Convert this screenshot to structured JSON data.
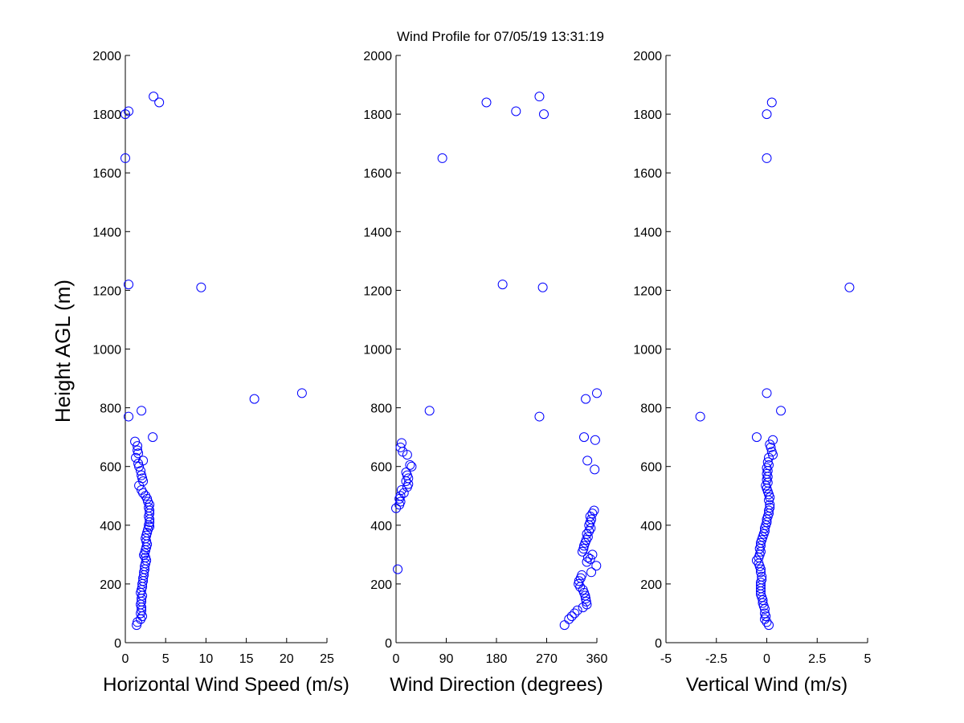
{
  "figure": {
    "title": "Wind Profile for  07/05/19 13:31:19",
    "ylabel": "Height AGL (m)"
  },
  "colors": {
    "marker": "#0000ff",
    "axis": "#000000",
    "background": "#ffffff"
  },
  "chart_data": [
    {
      "type": "scatter",
      "xlabel": "Horizontal Wind Speed (m/s)",
      "xlim": [
        0,
        25
      ],
      "ylim": [
        0,
        2000
      ],
      "xticks": [
        0,
        5,
        10,
        15,
        20,
        25
      ],
      "xticklabels": [
        "0",
        "5",
        "10",
        "15",
        "20",
        "25"
      ],
      "yticks": [
        0,
        200,
        400,
        600,
        800,
        1000,
        1200,
        1400,
        1600,
        1800,
        2000
      ],
      "yticklabels": [
        "0",
        "200",
        "400",
        "600",
        "800",
        "1000",
        "1200",
        "1400",
        "1600",
        "1800",
        "2000"
      ],
      "grid": false,
      "points": [
        [
          3.5,
          1860
        ],
        [
          4.2,
          1840
        ],
        [
          0.4,
          1810
        ],
        [
          0.0,
          1800
        ],
        [
          0.0,
          1650
        ],
        [
          0.4,
          1220
        ],
        [
          9.4,
          1210
        ],
        [
          21.9,
          850
        ],
        [
          16.0,
          830
        ],
        [
          2.0,
          790
        ],
        [
          0.4,
          770
        ],
        [
          3.4,
          700
        ],
        [
          1.2,
          685
        ],
        [
          1.5,
          670
        ],
        [
          1.5,
          655
        ],
        [
          1.6,
          645
        ],
        [
          1.3,
          630
        ],
        [
          2.2,
          620
        ],
        [
          1.6,
          610
        ],
        [
          1.7,
          600
        ],
        [
          1.9,
          585
        ],
        [
          2.0,
          570
        ],
        [
          2.1,
          560
        ],
        [
          2.2,
          550
        ],
        [
          1.7,
          535
        ],
        [
          2.0,
          520
        ],
        [
          2.2,
          510
        ],
        [
          2.5,
          500
        ],
        [
          2.7,
          490
        ],
        [
          2.8,
          480
        ],
        [
          3.0,
          470
        ],
        [
          2.9,
          460
        ],
        [
          3.0,
          450
        ],
        [
          3.0,
          440
        ],
        [
          2.9,
          430
        ],
        [
          3.0,
          420
        ],
        [
          3.0,
          410
        ],
        [
          2.9,
          400
        ],
        [
          3.0,
          395
        ],
        [
          2.8,
          385
        ],
        [
          2.7,
          375
        ],
        [
          2.6,
          365
        ],
        [
          2.5,
          355
        ],
        [
          2.6,
          345
        ],
        [
          2.7,
          335
        ],
        [
          2.6,
          325
        ],
        [
          2.5,
          315
        ],
        [
          2.4,
          305
        ],
        [
          2.3,
          298
        ],
        [
          2.5,
          290
        ],
        [
          2.6,
          280
        ],
        [
          2.5,
          270
        ],
        [
          2.4,
          260
        ],
        [
          2.4,
          250
        ],
        [
          2.3,
          240
        ],
        [
          2.3,
          230
        ],
        [
          2.2,
          220
        ],
        [
          2.2,
          210
        ],
        [
          2.1,
          200
        ],
        [
          2.1,
          190
        ],
        [
          2.0,
          180
        ],
        [
          1.9,
          170
        ],
        [
          2.1,
          160
        ],
        [
          2.0,
          150
        ],
        [
          2.0,
          140
        ],
        [
          1.9,
          130
        ],
        [
          2.0,
          120
        ],
        [
          2.0,
          110
        ],
        [
          1.9,
          100
        ],
        [
          2.1,
          90
        ],
        [
          1.9,
          80
        ],
        [
          1.5,
          70
        ],
        [
          1.4,
          60
        ]
      ]
    },
    {
      "type": "scatter",
      "xlabel": "Wind Direction (degrees)",
      "xlim": [
        0,
        360
      ],
      "ylim": [
        0,
        2000
      ],
      "xticks": [
        0,
        90,
        180,
        270,
        360
      ],
      "xticklabels": [
        "0",
        "90",
        "180",
        "270",
        "360"
      ],
      "yticks": [
        0,
        200,
        400,
        600,
        800,
        1000,
        1200,
        1400,
        1600,
        1800,
        2000
      ],
      "yticklabels": [
        "0",
        "200",
        "400",
        "600",
        "800",
        "1000",
        "1200",
        "1400",
        "1600",
        "1800",
        "2000"
      ],
      "grid": false,
      "points": [
        [
          257,
          1860
        ],
        [
          162,
          1840
        ],
        [
          215,
          1810
        ],
        [
          265,
          1800
        ],
        [
          83,
          1650
        ],
        [
          191,
          1220
        ],
        [
          263,
          1210
        ],
        [
          360,
          850
        ],
        [
          340,
          830
        ],
        [
          60,
          790
        ],
        [
          257,
          770
        ],
        [
          337,
          700
        ],
        [
          357,
          690
        ],
        [
          10,
          680
        ],
        [
          8,
          665
        ],
        [
          12,
          650
        ],
        [
          20,
          640
        ],
        [
          343,
          620
        ],
        [
          25,
          605
        ],
        [
          28,
          600
        ],
        [
          356,
          590
        ],
        [
          18,
          580
        ],
        [
          20,
          570
        ],
        [
          22,
          560
        ],
        [
          18,
          550
        ],
        [
          22,
          540
        ],
        [
          20,
          530
        ],
        [
          10,
          520
        ],
        [
          14,
          510
        ],
        [
          8,
          500
        ],
        [
          6,
          490
        ],
        [
          8,
          480
        ],
        [
          6,
          470
        ],
        [
          0,
          458
        ],
        [
          355,
          450
        ],
        [
          352,
          440
        ],
        [
          348,
          430
        ],
        [
          350,
          420
        ],
        [
          348,
          410
        ],
        [
          346,
          400
        ],
        [
          349,
          390
        ],
        [
          346,
          380
        ],
        [
          342,
          370
        ],
        [
          344,
          360
        ],
        [
          341,
          350
        ],
        [
          339,
          340
        ],
        [
          337,
          330
        ],
        [
          336,
          320
        ],
        [
          334,
          310
        ],
        [
          352,
          300
        ],
        [
          344,
          290
        ],
        [
          348,
          285
        ],
        [
          342,
          275
        ],
        [
          359,
          262
        ],
        [
          3,
          250
        ],
        [
          350,
          240
        ],
        [
          333,
          230
        ],
        [
          331,
          220
        ],
        [
          328,
          210
        ],
        [
          327,
          200
        ],
        [
          330,
          190
        ],
        [
          335,
          180
        ],
        [
          337,
          170
        ],
        [
          339,
          160
        ],
        [
          340,
          150
        ],
        [
          341,
          140
        ],
        [
          342,
          130
        ],
        [
          335,
          120
        ],
        [
          325,
          110
        ],
        [
          320,
          100
        ],
        [
          315,
          90
        ],
        [
          310,
          80
        ],
        [
          302,
          60
        ]
      ]
    },
    {
      "type": "scatter",
      "xlabel": "Vertical Wind (m/s)",
      "xlim": [
        -5,
        5
      ],
      "ylim": [
        0,
        2000
      ],
      "xticks": [
        -5,
        -2.5,
        0,
        2.5,
        5
      ],
      "xticklabels": [
        "-5",
        "-2.5",
        "0",
        "2.5",
        "5"
      ],
      "yticks": [
        0,
        200,
        400,
        600,
        800,
        1000,
        1200,
        1400,
        1600,
        1800,
        2000
      ],
      "yticklabels": [
        "0",
        "200",
        "400",
        "600",
        "800",
        "1000",
        "1200",
        "1400",
        "1600",
        "1800",
        "2000"
      ],
      "grid": false,
      "points": [
        [
          0.25,
          1840
        ],
        [
          0.0,
          1800
        ],
        [
          0.0,
          1650
        ],
        [
          4.1,
          1210
        ],
        [
          0.0,
          850
        ],
        [
          0.7,
          790
        ],
        [
          -3.3,
          770
        ],
        [
          -0.5,
          700
        ],
        [
          0.3,
          690
        ],
        [
          0.15,
          675
        ],
        [
          0.2,
          665
        ],
        [
          0.25,
          650
        ],
        [
          0.3,
          640
        ],
        [
          0.1,
          630
        ],
        [
          0.05,
          615
        ],
        [
          0.1,
          605
        ],
        [
          0.0,
          595
        ],
        [
          0.05,
          585
        ],
        [
          0.0,
          575
        ],
        [
          0.05,
          565
        ],
        [
          0.0,
          555
        ],
        [
          0.05,
          545
        ],
        [
          -0.05,
          535
        ],
        [
          0.0,
          525
        ],
        [
          0.05,
          515
        ],
        [
          0.1,
          505
        ],
        [
          0.15,
          495
        ],
        [
          0.1,
          485
        ],
        [
          0.15,
          470
        ],
        [
          0.15,
          460
        ],
        [
          0.1,
          450
        ],
        [
          0.1,
          440
        ],
        [
          0.05,
          430
        ],
        [
          0.0,
          420
        ],
        [
          0.0,
          410
        ],
        [
          -0.05,
          400
        ],
        [
          -0.1,
          390
        ],
        [
          -0.1,
          380
        ],
        [
          -0.15,
          370
        ],
        [
          -0.2,
          360
        ],
        [
          -0.25,
          350
        ],
        [
          -0.3,
          340
        ],
        [
          -0.3,
          330
        ],
        [
          -0.35,
          320
        ],
        [
          -0.3,
          310
        ],
        [
          -0.35,
          300
        ],
        [
          -0.4,
          290
        ],
        [
          -0.5,
          280
        ],
        [
          -0.4,
          270
        ],
        [
          -0.35,
          260
        ],
        [
          -0.3,
          250
        ],
        [
          -0.3,
          240
        ],
        [
          -0.25,
          225
        ],
        [
          -0.25,
          215
        ],
        [
          -0.3,
          205
        ],
        [
          -0.3,
          195
        ],
        [
          -0.3,
          185
        ],
        [
          -0.3,
          175
        ],
        [
          -0.3,
          165
        ],
        [
          -0.25,
          155
        ],
        [
          -0.2,
          145
        ],
        [
          -0.2,
          135
        ],
        [
          -0.15,
          125
        ],
        [
          -0.1,
          115
        ],
        [
          -0.1,
          100
        ],
        [
          -0.05,
          90
        ],
        [
          -0.1,
          80
        ],
        [
          0.0,
          70
        ],
        [
          0.1,
          60
        ]
      ]
    }
  ]
}
